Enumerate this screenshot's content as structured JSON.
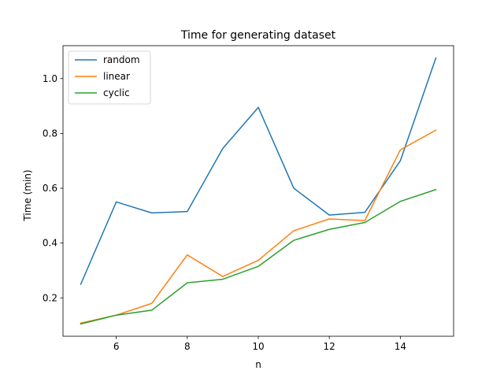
{
  "chart_data": {
    "type": "line",
    "title": "Time for generating dataset",
    "xlabel": "n",
    "ylabel": "Time (min)",
    "xlim": [
      4.5,
      15.5
    ],
    "ylim": [
      0.06,
      1.12
    ],
    "xticks": [
      6,
      8,
      10,
      12,
      14
    ],
    "yticks": [
      0.2,
      0.4,
      0.6,
      0.8,
      1.0
    ],
    "xtick_labels": [
      "6",
      "8",
      "10",
      "12",
      "14"
    ],
    "ytick_labels": [
      "0.2",
      "0.4",
      "0.6",
      "0.8",
      "1.0"
    ],
    "grid": false,
    "legend_position": "top-left",
    "x": [
      5,
      6,
      7,
      8,
      9,
      10,
      11,
      12,
      13,
      14,
      15
    ],
    "series": [
      {
        "name": "random",
        "color": "#1f77b4",
        "values": [
          0.25,
          0.55,
          0.51,
          0.515,
          0.745,
          0.895,
          0.6,
          0.502,
          0.512,
          0.7,
          1.075
        ]
      },
      {
        "name": "linear",
        "color": "#ff7f0e",
        "values": [
          0.108,
          0.137,
          0.18,
          0.357,
          0.278,
          0.337,
          0.445,
          0.488,
          0.482,
          0.74,
          0.812
        ]
      },
      {
        "name": "cyclic",
        "color": "#2ca02c",
        "values": [
          0.105,
          0.137,
          0.155,
          0.255,
          0.268,
          0.315,
          0.41,
          0.45,
          0.475,
          0.552,
          0.595
        ]
      }
    ]
  }
}
